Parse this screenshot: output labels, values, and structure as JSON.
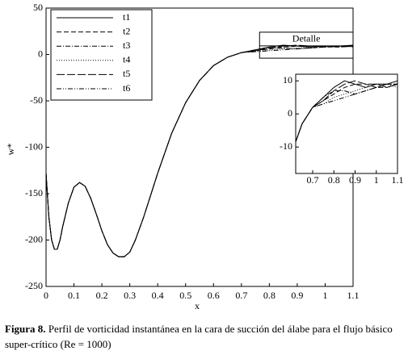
{
  "chart_data": {
    "type": "line",
    "xlabel": "x",
    "ylabel": "w*",
    "xlim": [
      0,
      1.1
    ],
    "ylim": [
      -250,
      50
    ],
    "xticks": [
      0,
      0.1,
      0.2,
      0.3,
      0.4,
      0.5,
      0.6,
      0.7,
      0.8,
      0.9,
      1,
      1.1
    ],
    "yticks": [
      -250,
      -200,
      -150,
      -100,
      -50,
      0,
      50
    ],
    "legend": "upper left",
    "annotation": "Detalle",
    "x": [
      0,
      0.01,
      0.02,
      0.03,
      0.04,
      0.05,
      0.06,
      0.08,
      0.1,
      0.12,
      0.14,
      0.16,
      0.18,
      0.2,
      0.22,
      0.24,
      0.26,
      0.28,
      0.3,
      0.32,
      0.35,
      0.4,
      0.45,
      0.5,
      0.55,
      0.6,
      0.65,
      0.7,
      0.75,
      0.8,
      0.85,
      0.9,
      0.95,
      1,
      1.05,
      1.1
    ],
    "series": [
      {
        "name": "t1",
        "color": "#000000",
        "style": "solid",
        "values": [
          -128,
          -175,
          -200,
          -210,
          -210,
          -200,
          -185,
          -160,
          -143,
          -138,
          -142,
          -155,
          -172,
          -190,
          -205,
          -214,
          -218,
          -218,
          -213,
          -200,
          -175,
          -128,
          -85,
          -52,
          -28,
          -12,
          -3,
          2,
          5,
          8,
          10,
          9,
          8,
          9,
          9,
          10
        ]
      },
      {
        "name": "t2",
        "color": "#000000",
        "style": "dashed",
        "values": [
          -128,
          -175,
          -200,
          -210,
          -210,
          -200,
          -185,
          -160,
          -143,
          -138,
          -142,
          -155,
          -172,
          -190,
          -205,
          -214,
          -218,
          -218,
          -213,
          -200,
          -175,
          -128,
          -85,
          -52,
          -28,
          -12,
          -3,
          2,
          4,
          6,
          8,
          9,
          9,
          8,
          8,
          9
        ]
      },
      {
        "name": "t3",
        "color": "#000000",
        "style": "dashdot",
        "values": [
          -128,
          -175,
          -200,
          -210,
          -210,
          -200,
          -185,
          -160,
          -143,
          -138,
          -142,
          -155,
          -172,
          -190,
          -205,
          -214,
          -218,
          -218,
          -213,
          -200,
          -175,
          -128,
          -85,
          -52,
          -28,
          -12,
          -3,
          2,
          5,
          7,
          7,
          6,
          7,
          8,
          9,
          9
        ]
      },
      {
        "name": "t4",
        "color": "#000000",
        "style": "dotted",
        "values": [
          -128,
          -175,
          -200,
          -210,
          -210,
          -200,
          -185,
          -160,
          -143,
          -138,
          -142,
          -155,
          -172,
          -190,
          -205,
          -214,
          -218,
          -218,
          -213,
          -200,
          -175,
          -128,
          -85,
          -52,
          -28,
          -12,
          -3,
          2,
          3,
          5,
          6,
          7,
          8,
          9,
          9,
          8
        ]
      },
      {
        "name": "t5",
        "color": "#000000",
        "style": "longdash",
        "values": [
          -128,
          -175,
          -200,
          -210,
          -210,
          -200,
          -185,
          -160,
          -143,
          -138,
          -142,
          -155,
          -172,
          -190,
          -205,
          -214,
          -218,
          -218,
          -213,
          -200,
          -175,
          -128,
          -85,
          -52,
          -28,
          -12,
          -3,
          2,
          4,
          7,
          9,
          10,
          9,
          9,
          8,
          9
        ]
      },
      {
        "name": "t6",
        "color": "#000000",
        "style": "dashdotdot",
        "values": [
          -128,
          -175,
          -200,
          -210,
          -210,
          -200,
          -185,
          -160,
          -143,
          -138,
          -142,
          -155,
          -172,
          -190,
          -205,
          -214,
          -218,
          -218,
          -213,
          -200,
          -175,
          -128,
          -85,
          -52,
          -28,
          -12,
          -3,
          2,
          3,
          4,
          5,
          6,
          7,
          8,
          9,
          9
        ]
      }
    ],
    "inset": {
      "xlim": [
        0.62,
        1.1
      ],
      "ylim": [
        -18,
        12
      ],
      "xticks": [
        0.7,
        0.8,
        0.9,
        1,
        1.1
      ],
      "yticks": [
        -10,
        0,
        10
      ]
    },
    "caption_label": "Figura 8.",
    "caption": "Perfil de vorticidad instantánea en la cara de succión del álabe para el flujo básico super-crítico (Re = 1000)"
  }
}
